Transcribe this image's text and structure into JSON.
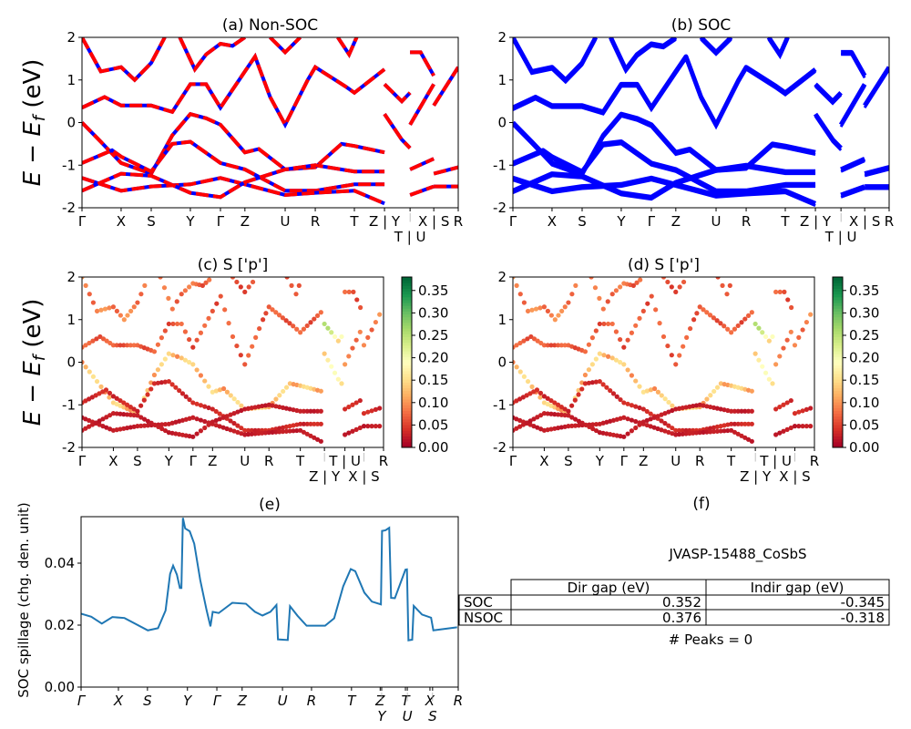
{
  "chart_data": [
    {
      "id": "a",
      "type": "line",
      "title": "(a) Non-SOC",
      "ylabel": {
        "main": "E − E",
        "sub": "f",
        "unit": " (eV)"
      },
      "ylim": [
        -2,
        2
      ],
      "yticks": [
        "-2",
        "-1",
        "0",
        "1",
        "2"
      ],
      "ytick_values": [
        -2,
        -1,
        0,
        1,
        2
      ],
      "xticks": [
        "Γ",
        "X",
        "S",
        "Y",
        "Γ",
        "Z",
        "U",
        "R",
        "T",
        "Z | Y",
        "T | U",
        "X | S",
        "R"
      ],
      "xtick_values": [
        0,
        0.104,
        0.184,
        0.288,
        0.368,
        0.433,
        0.54,
        0.62,
        0.724,
        0.804,
        0.872,
        0.935,
        1.0
      ],
      "style": "red-blue-dashed",
      "colors": {
        "line": "#0000ff",
        "dash": "#ff0000"
      }
    },
    {
      "id": "b",
      "type": "line",
      "title": "(b) SOC",
      "ylim": [
        -2,
        2
      ],
      "yticks": [
        "-2",
        "-1",
        "0",
        "1",
        "2"
      ],
      "ytick_values": [
        -2,
        -1,
        0,
        1,
        2
      ],
      "xticks": [
        "Γ",
        "X",
        "S",
        "Y",
        "Γ",
        "Z",
        "U",
        "R",
        "T",
        "Z | Y",
        "T | U",
        "X | S",
        "R"
      ],
      "xtick_values": [
        0,
        0.104,
        0.184,
        0.288,
        0.368,
        0.433,
        0.54,
        0.62,
        0.724,
        0.804,
        0.872,
        0.935,
        1.0
      ],
      "style": "thick-blue",
      "colors": {
        "line": "#0000ff"
      }
    },
    {
      "id": "c",
      "type": "scatter",
      "title": "(c)  S ['p']",
      "ylabel": {
        "main": "E − E",
        "sub": "f",
        "unit": " (eV)"
      },
      "ylim": [
        -2,
        2
      ],
      "yticks": [
        "-2",
        "-1",
        "0",
        "1",
        "2"
      ],
      "ytick_values": [
        -2,
        -1,
        0,
        1,
        2
      ],
      "xticks": [
        "Γ",
        "X",
        "S",
        "Y",
        "Γ",
        "Z",
        "U",
        "R",
        "T",
        "Z | Y",
        "T | U",
        "X | S",
        "R"
      ],
      "xtick_values": [
        0,
        0.104,
        0.184,
        0.288,
        0.368,
        0.433,
        0.54,
        0.62,
        0.724,
        0.804,
        0.872,
        0.935,
        1.0
      ],
      "colormap": "RdYlGn",
      "clim": [
        0,
        0.38
      ],
      "colorbar_ticks": [
        "0.00",
        "0.05",
        "0.10",
        "0.15",
        "0.20",
        "0.25",
        "0.30",
        "0.35"
      ],
      "colorbar_tick_values": [
        0,
        0.05,
        0.1,
        0.15,
        0.2,
        0.25,
        0.3,
        0.35
      ]
    },
    {
      "id": "d",
      "type": "scatter",
      "title": "(d) S ['p']",
      "ylim": [
        -2,
        2
      ],
      "yticks": [
        "-2",
        "-1",
        "0",
        "1",
        "2"
      ],
      "ytick_values": [
        -2,
        -1,
        0,
        1,
        2
      ],
      "xticks": [
        "Γ",
        "X",
        "S",
        "Y",
        "Γ",
        "Z",
        "U",
        "R",
        "T",
        "Z | Y",
        "T | U",
        "X | S",
        "R"
      ],
      "xtick_values": [
        0,
        0.104,
        0.184,
        0.288,
        0.368,
        0.433,
        0.54,
        0.62,
        0.724,
        0.804,
        0.872,
        0.935,
        1.0
      ],
      "colormap": "RdYlGn",
      "clim": [
        0,
        0.38
      ],
      "colorbar_ticks": [
        "0.00",
        "0.05",
        "0.10",
        "0.15",
        "0.20",
        "0.25",
        "0.30",
        "0.35"
      ],
      "colorbar_tick_values": [
        0,
        0.05,
        0.1,
        0.15,
        0.2,
        0.25,
        0.3,
        0.35
      ]
    },
    {
      "id": "e",
      "type": "line",
      "title": "(e)",
      "ylabel_text": "SOC spillage (chg. den. unit)",
      "ylim": [
        0,
        0.055
      ],
      "yticks": [
        "0.00",
        "0.02",
        "0.04"
      ],
      "ytick_values": [
        0,
        0.02,
        0.04
      ],
      "xticks": [
        "Γ",
        "X",
        "S",
        "Y",
        "Γ",
        "Z",
        "U",
        "R",
        "T",
        "Z",
        "Y",
        "T",
        "U",
        "X",
        "S",
        "R"
      ],
      "xtick_values": [
        0,
        0.099,
        0.176,
        0.282,
        0.36,
        0.427,
        0.534,
        0.611,
        0.717,
        0.793,
        0.797,
        0.86,
        0.865,
        0.925,
        0.932,
        1.0
      ],
      "color": "#1f77b4",
      "x": [
        0,
        0.027,
        0.055,
        0.083,
        0.115,
        0.177,
        0.204,
        0.224,
        0.236,
        0.244,
        0.254,
        0.262,
        0.266,
        0.27,
        0.276,
        0.288,
        0.3,
        0.316,
        0.333,
        0.343,
        0.349,
        0.365,
        0.401,
        0.437,
        0.461,
        0.481,
        0.502,
        0.518,
        0.522,
        0.548,
        0.554,
        0.574,
        0.598,
        0.647,
        0.671,
        0.695,
        0.715,
        0.727,
        0.751,
        0.771,
        0.795,
        0.798,
        0.807,
        0.817,
        0.822,
        0.832,
        0.86,
        0.864,
        0.868,
        0.878,
        0.882,
        0.904,
        0.928,
        0.934,
        0.997
      ],
      "y": [
        0.0237,
        0.0227,
        0.0205,
        0.0226,
        0.0223,
        0.0183,
        0.019,
        0.0247,
        0.0365,
        0.0392,
        0.0363,
        0.032,
        0.032,
        0.0546,
        0.0512,
        0.0503,
        0.0463,
        0.0345,
        0.0247,
        0.0196,
        0.0243,
        0.0239,
        0.0272,
        0.0269,
        0.0243,
        0.0231,
        0.0243,
        0.0265,
        0.0154,
        0.0152,
        0.0261,
        0.023,
        0.0198,
        0.0198,
        0.0222,
        0.0325,
        0.0381,
        0.0374,
        0.0305,
        0.0276,
        0.0267,
        0.0504,
        0.0506,
        0.0514,
        0.0288,
        0.0287,
        0.0379,
        0.038,
        0.0151,
        0.0153,
        0.0262,
        0.0234,
        0.0224,
        0.0183,
        0.0193
      ]
    }
  ],
  "bands": [
    {
      "w": 0.12,
      "pts": [
        [
          0,
          0.0
        ],
        [
          0.05,
          -0.45
        ],
        [
          0.104,
          -0.95
        ],
        [
          0.184,
          -1.2
        ],
        [
          0.24,
          -0.3
        ],
        [
          0.288,
          0.2
        ],
        [
          0.33,
          0.1
        ],
        [
          0.368,
          -0.05
        ],
        [
          0.433,
          -0.7
        ],
        [
          0.47,
          -0.62
        ],
        [
          0.54,
          -1.1
        ],
        [
          0.62,
          -1.05
        ],
        [
          0.69,
          -0.5
        ],
        [
          0.724,
          -0.55
        ],
        [
          0.804,
          -0.7
        ]
      ]
    },
    {
      "w": 0.06,
      "pts": [
        [
          0,
          0.35
        ],
        [
          0.06,
          0.6
        ],
        [
          0.104,
          0.4
        ],
        [
          0.184,
          0.4
        ],
        [
          0.24,
          0.25
        ],
        [
          0.288,
          0.9
        ],
        [
          0.33,
          0.9
        ],
        [
          0.368,
          0.35
        ],
        [
          0.433,
          1.2
        ],
        [
          0.46,
          1.55
        ],
        [
          0.5,
          0.6
        ],
        [
          0.54,
          -0.05
        ],
        [
          0.6,
          1.0
        ],
        [
          0.62,
          1.3
        ],
        [
          0.7,
          0.85
        ],
        [
          0.724,
          0.7
        ],
        [
          0.804,
          1.25
        ]
      ]
    },
    {
      "w": 0.03,
      "pts": [
        [
          0,
          -0.95
        ],
        [
          0.08,
          -0.65
        ],
        [
          0.104,
          -0.8
        ],
        [
          0.184,
          -1.15
        ],
        [
          0.24,
          -0.5
        ],
        [
          0.288,
          -0.45
        ],
        [
          0.368,
          -0.95
        ],
        [
          0.433,
          -1.1
        ],
        [
          0.54,
          -1.6
        ],
        [
          0.62,
          -1.6
        ],
        [
          0.724,
          -1.45
        ],
        [
          0.804,
          -1.45
        ]
      ]
    },
    {
      "w": 0.02,
      "pts": [
        [
          0,
          -1.3
        ],
        [
          0.104,
          -1.6
        ],
        [
          0.184,
          -1.5
        ],
        [
          0.288,
          -1.45
        ],
        [
          0.368,
          -1.3
        ],
        [
          0.433,
          -1.45
        ],
        [
          0.54,
          -1.7
        ],
        [
          0.62,
          -1.65
        ],
        [
          0.724,
          -1.6
        ],
        [
          0.804,
          -1.9
        ]
      ]
    },
    {
      "w": 0.02,
      "pts": [
        [
          0,
          -1.6
        ],
        [
          0.104,
          -1.2
        ],
        [
          0.184,
          -1.25
        ],
        [
          0.288,
          -1.65
        ],
        [
          0.368,
          -1.75
        ],
        [
          0.433,
          -1.4
        ],
        [
          0.54,
          -1.1
        ],
        [
          0.62,
          -1.0
        ],
        [
          0.724,
          -1.15
        ],
        [
          0.804,
          -1.15
        ]
      ]
    },
    {
      "w": 0.08,
      "pts": [
        [
          0,
          2.0
        ],
        [
          0.05,
          1.2
        ],
        [
          0.104,
          1.3
        ],
        [
          0.14,
          1.0
        ],
        [
          0.184,
          1.4
        ],
        [
          0.22,
          2.0
        ]
      ]
    },
    {
      "w": 0.07,
      "pts": [
        [
          0.26,
          2.0
        ],
        [
          0.3,
          1.25
        ],
        [
          0.33,
          1.6
        ],
        [
          0.368,
          1.85
        ],
        [
          0.4,
          1.8
        ],
        [
          0.433,
          2.0
        ]
      ]
    },
    {
      "w": 0.05,
      "pts": [
        [
          0.5,
          2.0
        ],
        [
          0.54,
          1.65
        ],
        [
          0.58,
          2.0
        ]
      ]
    },
    {
      "w": 0.05,
      "pts": [
        [
          0.68,
          2.0
        ],
        [
          0.71,
          1.6
        ],
        [
          0.73,
          2.0
        ]
      ]
    },
    {
      "w": 0.15,
      "pts": [
        [
          0.804,
          0.2
        ],
        [
          0.85,
          -0.4
        ],
        [
          0.872,
          -0.6
        ]
      ]
    },
    {
      "w": 0.2,
      "pts": [
        [
          0.804,
          0.9
        ],
        [
          0.85,
          0.5
        ],
        [
          0.872,
          0.7
        ]
      ]
    },
    {
      "w": 0.08,
      "pts": [
        [
          0.872,
          -0.05
        ],
        [
          0.935,
          0.9
        ]
      ]
    },
    {
      "w": 0.08,
      "pts": [
        [
          0.935,
          0.4
        ],
        [
          1.0,
          1.3
        ]
      ]
    },
    {
      "w": 0.03,
      "pts": [
        [
          0.872,
          -1.1
        ],
        [
          0.935,
          -0.85
        ]
      ]
    },
    {
      "w": 0.03,
      "pts": [
        [
          0.935,
          -1.2
        ],
        [
          1.0,
          -1.05
        ]
      ]
    },
    {
      "w": 0.02,
      "pts": [
        [
          0.872,
          -1.7
        ],
        [
          0.935,
          -1.5
        ]
      ]
    },
    {
      "w": 0.02,
      "pts": [
        [
          0.935,
          -1.5
        ],
        [
          1.0,
          -1.5
        ]
      ]
    },
    {
      "w": 0.06,
      "pts": [
        [
          0.872,
          1.65
        ],
        [
          0.9,
          1.65
        ],
        [
          0.935,
          1.1
        ]
      ]
    }
  ],
  "panel_f": {
    "title": "(f)",
    "material": "JVASP-15488_CoSbS",
    "table": {
      "columns": [
        "Dir gap (eV)",
        "Indir gap (eV)"
      ],
      "rows": [
        {
          "label": "SOC",
          "dir": "0.352",
          "indir": "-0.345"
        },
        {
          "label": "NSOC",
          "dir": "0.376",
          "indir": "-0.318"
        }
      ]
    },
    "peaks": "# Peaks = 0"
  }
}
